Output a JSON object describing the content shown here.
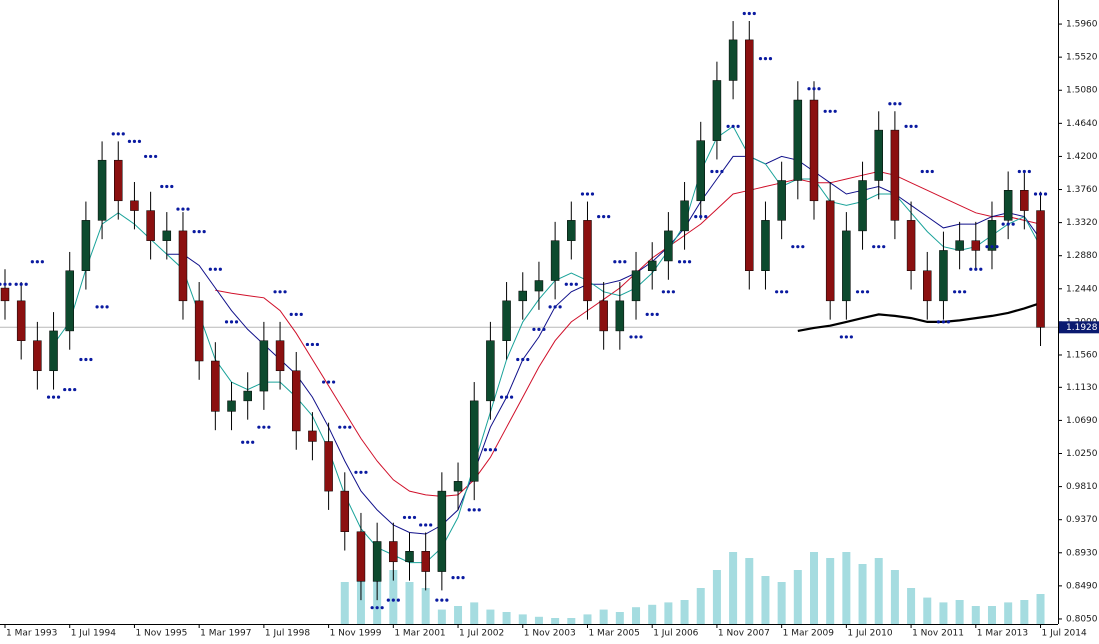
{
  "chart_data": {
    "type": "candlestick",
    "categories": [
      "1 Mar 1993",
      null,
      null,
      null,
      "1 Jul 1994",
      null,
      null,
      null,
      "1 Nov 1995",
      null,
      null,
      null,
      "1 Mar 1997",
      null,
      null,
      null,
      "1 Jul 1998",
      null,
      null,
      null,
      "1 Nov 1999",
      null,
      null,
      null,
      "1 Mar 2001",
      null,
      null,
      null,
      "1 Jul 2002",
      null,
      null,
      null,
      "1 Nov 2003",
      null,
      null,
      null,
      "1 Mar 2005",
      null,
      null,
      null,
      "1 Jul 2006",
      null,
      null,
      null,
      "1 Nov 2007",
      null,
      null,
      null,
      "1 Mar 2009",
      null,
      null,
      null,
      "1 Jul 2010",
      null,
      null,
      null,
      "1 Nov 2011",
      null,
      null,
      null,
      "1 Mar 2013",
      null,
      null,
      null,
      "1 Jul 2014"
    ],
    "open": [
      1.245,
      1.228,
      1.175,
      1.135,
      1.188,
      1.268,
      1.335,
      1.415,
      1.361,
      1.348,
      1.308,
      1.321,
      1.228,
      1.148,
      1.081,
      1.095,
      1.108,
      1.175,
      1.135,
      1.055,
      1.041,
      0.975,
      0.921,
      0.855,
      0.908,
      0.881,
      0.895,
      0.868,
      0.975,
      0.988,
      1.095,
      1.175,
      1.228,
      1.241,
      1.255,
      1.308,
      1.335,
      1.228,
      1.188,
      1.228,
      1.268,
      1.281,
      1.321,
      1.361,
      1.441,
      1.521,
      1.575,
      1.268,
      1.335,
      1.388,
      1.495,
      1.361,
      1.228,
      1.321,
      1.388,
      1.455,
      1.335,
      1.268,
      1.228,
      1.295,
      1.308,
      1.295,
      1.335,
      1.375,
      1.348
    ],
    "high": [
      1.27,
      1.253,
      1.2,
      1.213,
      1.293,
      1.36,
      1.44,
      1.44,
      1.386,
      1.373,
      1.346,
      1.346,
      1.253,
      1.173,
      1.12,
      1.133,
      1.2,
      1.2,
      1.16,
      1.08,
      1.066,
      1.0,
      0.946,
      0.933,
      0.933,
      0.92,
      0.92,
      1.0,
      1.013,
      1.12,
      1.2,
      1.253,
      1.266,
      1.28,
      1.333,
      1.36,
      1.36,
      1.253,
      1.253,
      1.293,
      1.306,
      1.346,
      1.386,
      1.466,
      1.546,
      1.6,
      1.6,
      1.36,
      1.413,
      1.52,
      1.52,
      1.386,
      1.346,
      1.413,
      1.48,
      1.48,
      1.36,
      1.293,
      1.32,
      1.333,
      1.333,
      1.36,
      1.4,
      1.4,
      1.373
    ],
    "low": [
      1.203,
      1.15,
      1.11,
      1.11,
      1.163,
      1.243,
      1.31,
      1.336,
      1.323,
      1.283,
      1.283,
      1.203,
      1.123,
      1.056,
      1.056,
      1.07,
      1.083,
      1.11,
      1.03,
      1.016,
      0.95,
      0.896,
      0.83,
      0.83,
      0.856,
      0.856,
      0.843,
      0.843,
      0.95,
      0.963,
      1.07,
      1.15,
      1.203,
      1.216,
      1.23,
      1.283,
      1.203,
      1.163,
      1.163,
      1.203,
      1.243,
      1.256,
      1.296,
      1.336,
      1.416,
      1.496,
      1.243,
      1.243,
      1.31,
      1.363,
      1.336,
      1.203,
      1.203,
      1.296,
      1.363,
      1.31,
      1.243,
      1.203,
      1.203,
      1.27,
      1.27,
      1.27,
      1.31,
      1.323,
      1.168
    ],
    "close": [
      1.228,
      1.175,
      1.135,
      1.188,
      1.268,
      1.335,
      1.415,
      1.361,
      1.348,
      1.308,
      1.321,
      1.228,
      1.148,
      1.081,
      1.095,
      1.108,
      1.175,
      1.135,
      1.055,
      1.041,
      0.975,
      0.921,
      0.855,
      0.908,
      0.881,
      0.895,
      0.868,
      0.975,
      0.988,
      1.095,
      1.175,
      1.228,
      1.241,
      1.255,
      1.308,
      1.335,
      1.228,
      1.188,
      1.228,
      1.268,
      1.281,
      1.321,
      1.361,
      1.441,
      1.521,
      1.575,
      1.268,
      1.335,
      1.388,
      1.495,
      1.361,
      1.228,
      1.321,
      1.388,
      1.455,
      1.335,
      1.268,
      1.228,
      1.295,
      1.308,
      1.295,
      1.335,
      1.375,
      1.348,
      1.1928
    ],
    "up_color": "#0d4a2e",
    "down_color": "#8b1010",
    "lines": [
      {
        "color": "#d0102a",
        "values": [
          null,
          null,
          null,
          null,
          null,
          null,
          null,
          null,
          null,
          null,
          null,
          null,
          null,
          1.242,
          1.238,
          1.235,
          1.232,
          1.215,
          1.185,
          1.15,
          1.115,
          1.08,
          1.045,
          1.015,
          0.99,
          0.975,
          0.97,
          0.968,
          0.97,
          0.99,
          1.02,
          1.06,
          1.1,
          1.14,
          1.175,
          1.2,
          1.215,
          1.23,
          1.245,
          1.265,
          1.285,
          1.3,
          1.315,
          1.33,
          1.35,
          1.37,
          1.375,
          1.38,
          1.385,
          1.39,
          1.385,
          1.385,
          1.39,
          1.395,
          1.4,
          1.395,
          1.385,
          1.375,
          1.365,
          1.355,
          1.345,
          1.34,
          1.34,
          1.335,
          1.33
        ]
      },
      {
        "color": "#10108a",
        "values": [
          null,
          null,
          null,
          null,
          null,
          null,
          null,
          null,
          null,
          null,
          1.29,
          1.29,
          1.275,
          1.245,
          1.215,
          1.19,
          1.17,
          1.15,
          1.13,
          1.1,
          1.06,
          1.015,
          0.975,
          0.95,
          0.93,
          0.92,
          0.918,
          0.93,
          0.95,
          1.0,
          1.06,
          1.1,
          1.15,
          1.18,
          1.22,
          1.24,
          1.25,
          1.25,
          1.255,
          1.265,
          1.28,
          1.3,
          1.325,
          1.36,
          1.39,
          1.42,
          1.42,
          1.41,
          1.42,
          1.415,
          1.4,
          1.385,
          1.37,
          1.375,
          1.38,
          1.37,
          1.355,
          1.34,
          1.325,
          1.33,
          1.33,
          1.34,
          1.345,
          1.34,
          1.31
        ]
      },
      {
        "color": "#1aa39a",
        "values": [
          null,
          null,
          null,
          1.17,
          1.2,
          1.27,
          1.33,
          1.345,
          1.33,
          1.31,
          1.29,
          1.27,
          1.21,
          1.15,
          1.12,
          1.11,
          1.12,
          1.12,
          1.1,
          1.075,
          1.03,
          0.97,
          0.925,
          0.9,
          0.89,
          0.88,
          0.88,
          0.9,
          0.94,
          1.01,
          1.08,
          1.15,
          1.2,
          1.23,
          1.255,
          1.265,
          1.255,
          1.24,
          1.235,
          1.245,
          1.265,
          1.295,
          1.33,
          1.4,
          1.445,
          1.46,
          1.42,
          1.41,
          1.38,
          1.39,
          1.39,
          1.36,
          1.355,
          1.36,
          1.37,
          1.37,
          1.345,
          1.32,
          1.3,
          1.295,
          1.3,
          1.315,
          1.33,
          1.34,
          1.3
        ]
      },
      {
        "color": "#000000",
        "values": [
          null,
          null,
          null,
          null,
          null,
          null,
          null,
          null,
          null,
          null,
          null,
          null,
          null,
          null,
          null,
          null,
          null,
          null,
          null,
          null,
          null,
          null,
          null,
          null,
          null,
          null,
          null,
          null,
          null,
          null,
          null,
          null,
          null,
          null,
          null,
          null,
          null,
          null,
          null,
          null,
          null,
          null,
          null,
          null,
          null,
          null,
          null,
          null,
          null,
          1.188,
          1.192,
          1.195,
          1.2,
          1.205,
          1.21,
          1.208,
          1.205,
          1.2,
          1.2,
          1.202,
          1.205,
          1.208,
          1.212,
          1.218,
          1.225
        ]
      }
    ],
    "sar": {
      "color": "#0a1aa0",
      "values": [
        1.25,
        1.25,
        1.28,
        1.1,
        1.11,
        1.15,
        1.22,
        1.45,
        1.44,
        1.42,
        1.38,
        1.35,
        1.32,
        1.27,
        1.2,
        1.04,
        1.06,
        1.24,
        1.21,
        1.17,
        1.12,
        1.06,
        1.0,
        0.82,
        0.83,
        0.94,
        0.93,
        0.83,
        0.86,
        0.95,
        1.03,
        1.1,
        1.15,
        1.19,
        1.22,
        1.25,
        1.37,
        1.34,
        1.28,
        1.18,
        1.21,
        1.24,
        1.28,
        1.34,
        1.4,
        1.46,
        1.61,
        1.55,
        1.24,
        1.3,
        1.51,
        1.48,
        1.18,
        1.24,
        1.3,
        1.49,
        1.46,
        1.4,
        1.2,
        1.24,
        1.27,
        1.3,
        1.33,
        1.4,
        1.37
      ]
    },
    "volume": {
      "color": "#8fd3d8",
      "ylim": [
        0,
        100
      ],
      "values": [
        null,
        null,
        null,
        null,
        null,
        null,
        null,
        null,
        null,
        null,
        null,
        null,
        null,
        null,
        null,
        null,
        null,
        null,
        null,
        null,
        null,
        35,
        45,
        40,
        45,
        35,
        30,
        12,
        15,
        18,
        12,
        10,
        8,
        6,
        5,
        5,
        8,
        12,
        10,
        14,
        16,
        18,
        20,
        30,
        45,
        60,
        55,
        40,
        35,
        45,
        60,
        55,
        60,
        50,
        55,
        45,
        30,
        22,
        18,
        20,
        15,
        15,
        18,
        20,
        25
      ]
    },
    "last_price": 1.1928,
    "last_price_color": "#0a1a70",
    "ylim": [
      0.7983,
      1.628
    ],
    "yticks": [
      {
        "value": 1.596,
        "label": "1.5960"
      },
      {
        "value": 1.552,
        "label": "1.5520"
      },
      {
        "value": 1.508,
        "label": "1.5080"
      },
      {
        "value": 1.464,
        "label": "1.4640"
      },
      {
        "value": 1.42,
        "label": "1.4200"
      },
      {
        "value": 1.376,
        "label": "1.3760"
      },
      {
        "value": 1.332,
        "label": "1.3320"
      },
      {
        "value": 1.288,
        "label": "1.2880"
      },
      {
        "value": 1.244,
        "label": "1.2440"
      },
      {
        "value": 1.2,
        "label": "1.2000"
      },
      {
        "value": 1.156,
        "label": "1.1560"
      },
      {
        "value": 1.113,
        "label": "1.1130"
      },
      {
        "value": 1.069,
        "label": "1.0690"
      },
      {
        "value": 1.025,
        "label": "1.0250"
      },
      {
        "value": 0.981,
        "label": "0.9810"
      },
      {
        "value": 0.937,
        "label": "0.9370"
      },
      {
        "value": 0.893,
        "label": "0.8930"
      },
      {
        "value": 0.849,
        "label": "0.8490"
      },
      {
        "value": 0.805,
        "label": "0.8050"
      }
    ]
  }
}
